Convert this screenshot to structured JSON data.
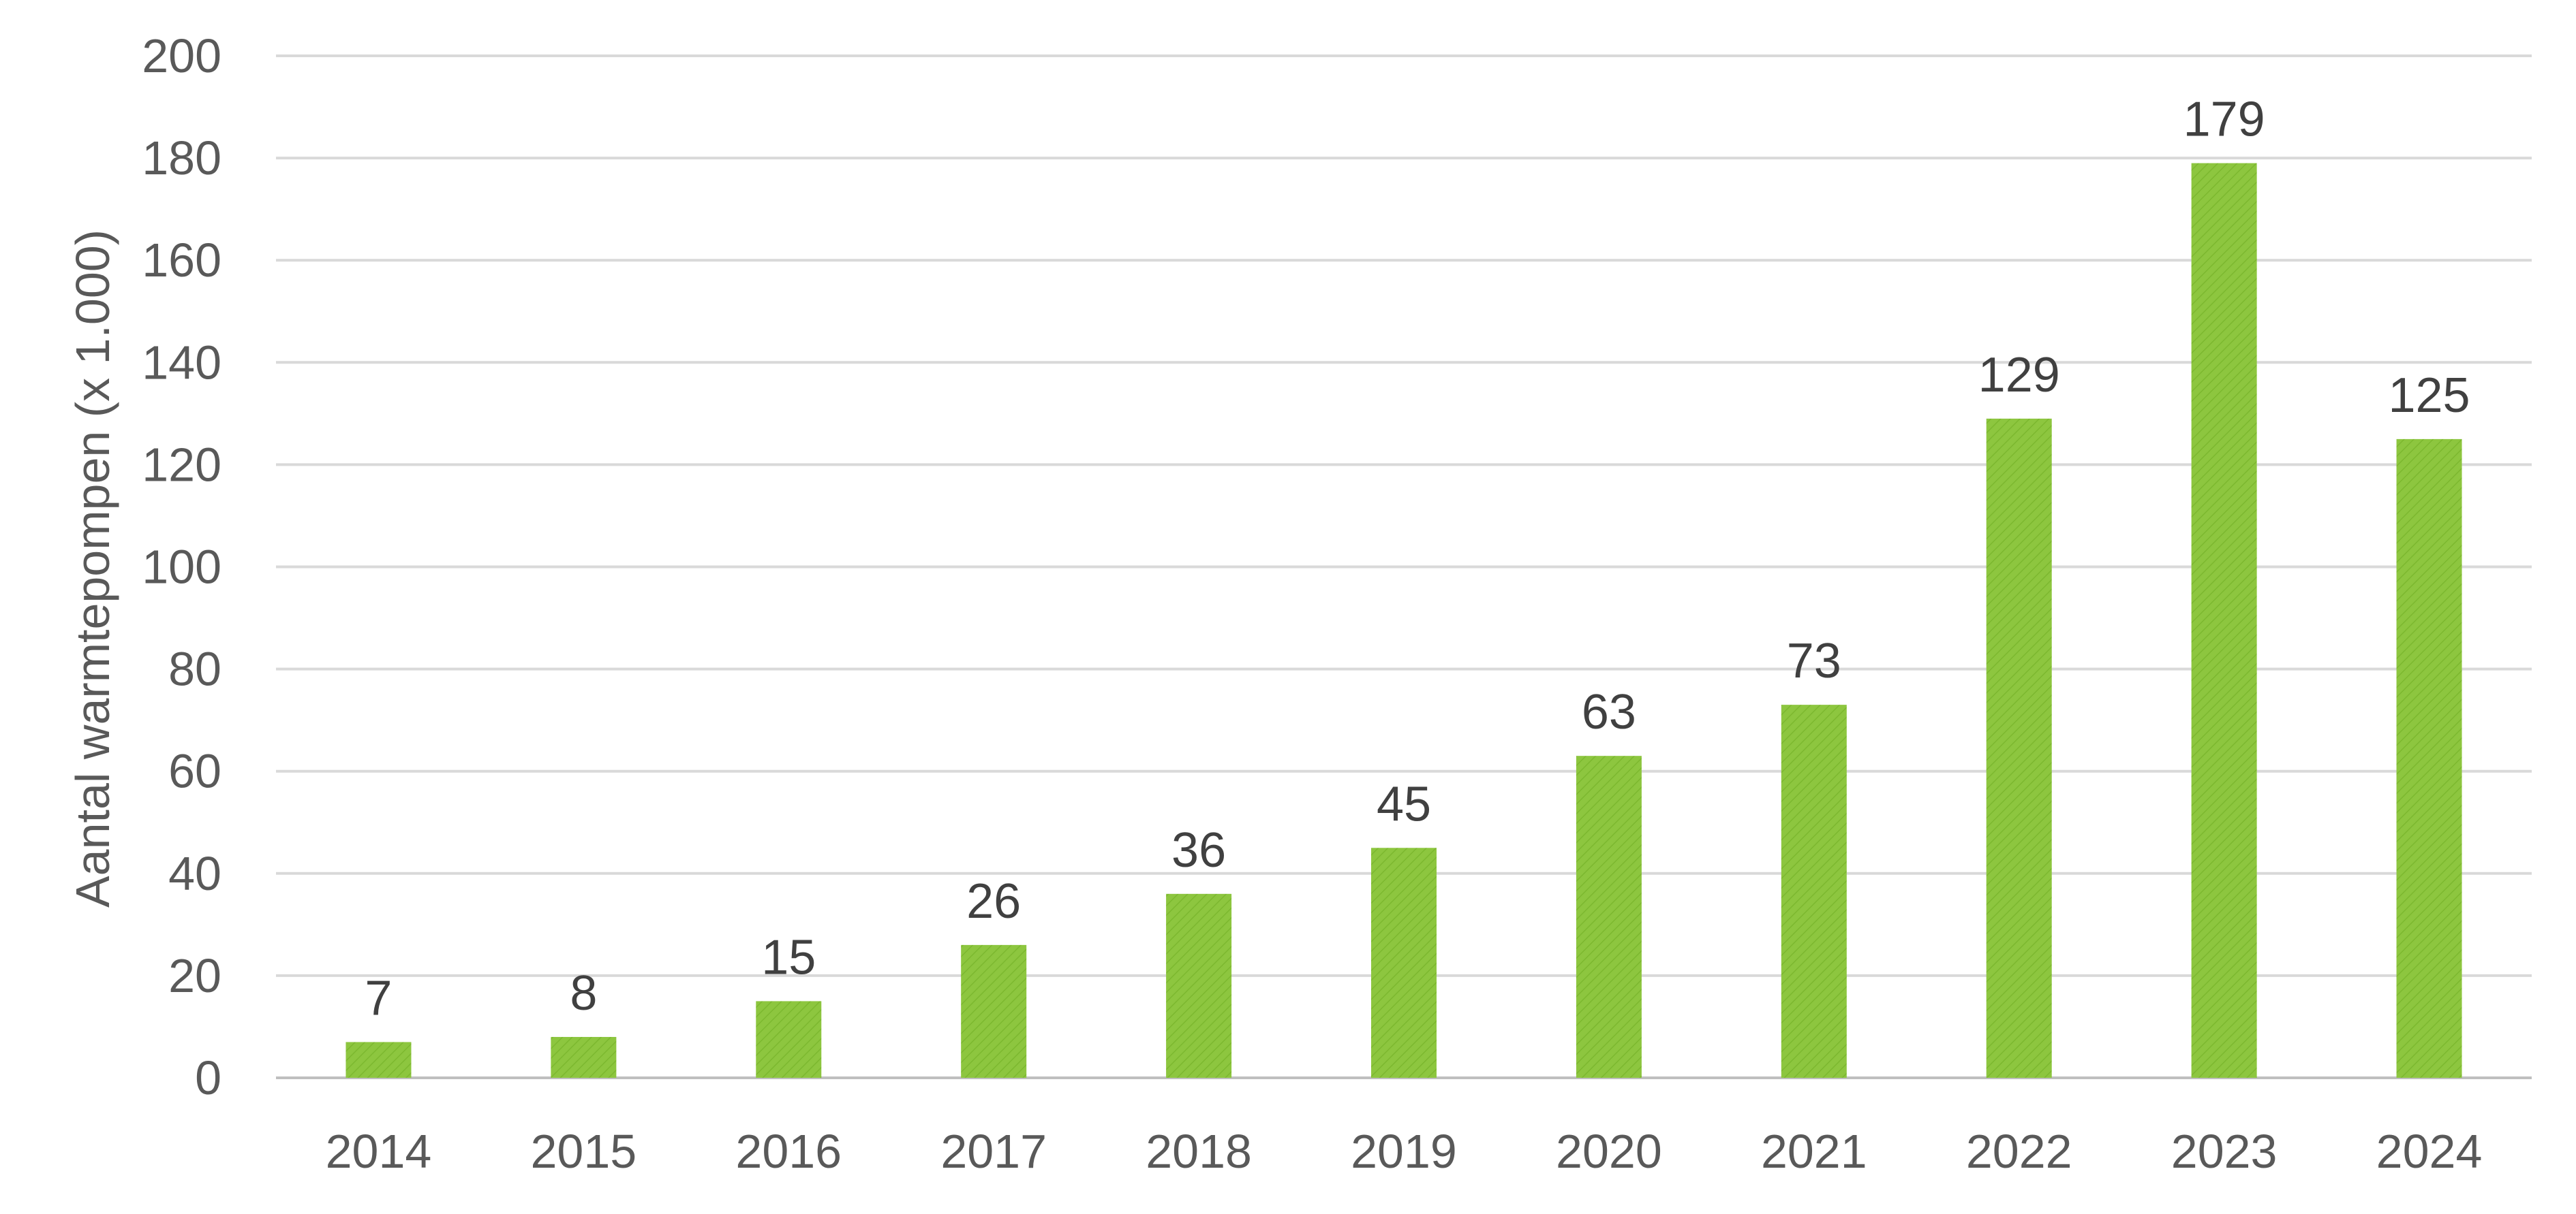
{
  "chart_data": {
    "type": "bar",
    "title": "",
    "xlabel": "",
    "ylabel": "Aantal warmtepompen (x 1.000)",
    "categories": [
      "2014",
      "2015",
      "2016",
      "2017",
      "2018",
      "2019",
      "2020",
      "2021",
      "2022",
      "2023",
      "2024"
    ],
    "values": [
      7,
      8,
      15,
      26,
      36,
      45,
      63,
      73,
      129,
      179,
      125
    ],
    "data_labels": [
      "7",
      "8",
      "15",
      "26",
      "36",
      "45",
      "63",
      "73",
      "129",
      "179",
      "125"
    ],
    "ylim": [
      0,
      200
    ],
    "yticks": [
      "0",
      "20",
      "40",
      "60",
      "80",
      "100",
      "120",
      "140",
      "160",
      "180",
      "200"
    ],
    "grid": true,
    "legend": "none",
    "colors": {
      "bar": "#8dc63f",
      "bar_hatch": "#78b32c",
      "grid": "#d9d9d9",
      "text": "#595959"
    }
  }
}
